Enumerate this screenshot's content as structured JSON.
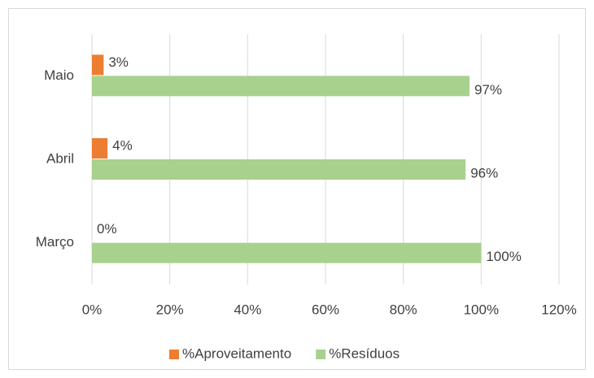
{
  "chart_data": {
    "type": "bar",
    "orientation": "horizontal",
    "categories": [
      "Março",
      "Abril",
      "Maio"
    ],
    "series": [
      {
        "name": "%Aproveitamento",
        "color": "#ed7d31",
        "values": [
          0,
          4,
          3
        ],
        "value_labels": [
          "0%",
          "4%",
          "3%"
        ]
      },
      {
        "name": "%Resíduos",
        "color": "#a9d18e",
        "values": [
          100,
          96,
          97
        ],
        "value_labels": [
          "100%",
          "96%",
          "97%"
        ]
      }
    ],
    "xlim": [
      0,
      120
    ],
    "xticks": [
      {
        "value": 0,
        "label": "0%"
      },
      {
        "value": 20,
        "label": "20%"
      },
      {
        "value": 40,
        "label": "40%"
      },
      {
        "value": 60,
        "label": "60%"
      },
      {
        "value": 80,
        "label": "80%"
      },
      {
        "value": 100,
        "label": "100%"
      },
      {
        "value": 120,
        "label": "120%"
      }
    ],
    "grid": true,
    "legend": "bottom"
  }
}
